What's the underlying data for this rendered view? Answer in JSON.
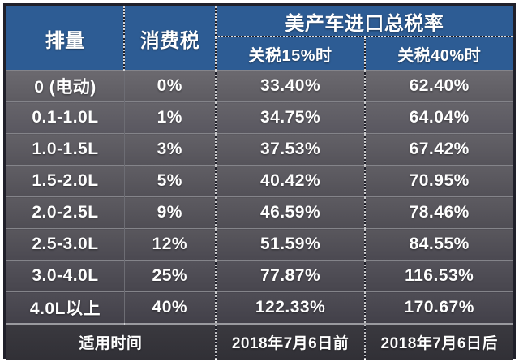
{
  "table": {
    "header": {
      "displacement": "排量",
      "consumption_tax": "消费税",
      "total_rate_group": "美产车进口总税率",
      "sub_tariff_15": "关税15%时",
      "sub_tariff_40": "关税40%时"
    },
    "rows": [
      {
        "displacement": "0 (电动)",
        "consumption_tax": "0%",
        "rate_15": "33.40%",
        "rate_40": "62.40%"
      },
      {
        "displacement": "0.1-1.0L",
        "consumption_tax": "1%",
        "rate_15": "34.75%",
        "rate_40": "64.04%"
      },
      {
        "displacement": "1.0-1.5L",
        "consumption_tax": "3%",
        "rate_15": "37.53%",
        "rate_40": "67.42%"
      },
      {
        "displacement": "1.5-2.0L",
        "consumption_tax": "5%",
        "rate_15": "40.42%",
        "rate_40": "70.95%"
      },
      {
        "displacement": "2.0-2.5L",
        "consumption_tax": "9%",
        "rate_15": "46.59%",
        "rate_40": "78.46%"
      },
      {
        "displacement": "2.5-3.0L",
        "consumption_tax": "12%",
        "rate_15": "51.59%",
        "rate_40": "84.55%"
      },
      {
        "displacement": "3.0-4.0L",
        "consumption_tax": "25%",
        "rate_15": "77.87%",
        "rate_40": "116.53%"
      },
      {
        "displacement": "4.0L以上",
        "consumption_tax": "40%",
        "rate_15": "122.33%",
        "rate_40": "170.67%"
      }
    ],
    "footer": {
      "label": "适用时间",
      "before": "2018年7月6日前",
      "after": "2018年7月6日后"
    },
    "colors": {
      "header_blue": "#2d5c94",
      "row_gray_top": "#6b696f",
      "row_gray_bottom": "#424049",
      "footer_dark": "#35343a",
      "frame_border": "#20202a",
      "text": "#ffffff"
    }
  },
  "chart_data": {
    "type": "table",
    "title": "美产车进口总税率",
    "columns": [
      "排量",
      "消费税",
      "关税15%时",
      "关税40%时"
    ],
    "rows": [
      [
        "0 (电动)",
        "0%",
        "33.40%",
        "62.40%"
      ],
      [
        "0.1-1.0L",
        "1%",
        "34.75%",
        "64.04%"
      ],
      [
        "1.0-1.5L",
        "3%",
        "37.53%",
        "67.42%"
      ],
      [
        "1.5-2.0L",
        "5%",
        "40.42%",
        "70.95%"
      ],
      [
        "2.0-2.5L",
        "9%",
        "46.59%",
        "78.46%"
      ],
      [
        "2.5-3.0L",
        "12%",
        "51.59%",
        "84.55%"
      ],
      [
        "3.0-4.0L",
        "25%",
        "77.87%",
        "116.53%"
      ],
      [
        "4.0L以上",
        "40%",
        "122.33%",
        "170.67%"
      ]
    ],
    "footer": [
      "适用时间",
      "2018年7月6日前",
      "2018年7月6日后"
    ],
    "rate_15_values": [
      33.4,
      34.75,
      37.53,
      40.42,
      46.59,
      51.59,
      77.87,
      122.33
    ],
    "rate_40_values": [
      62.4,
      64.04,
      67.42,
      70.95,
      78.46,
      84.55,
      116.53,
      170.67
    ],
    "consumption_tax_values": [
      0,
      1,
      3,
      5,
      9,
      12,
      25,
      40
    ]
  }
}
